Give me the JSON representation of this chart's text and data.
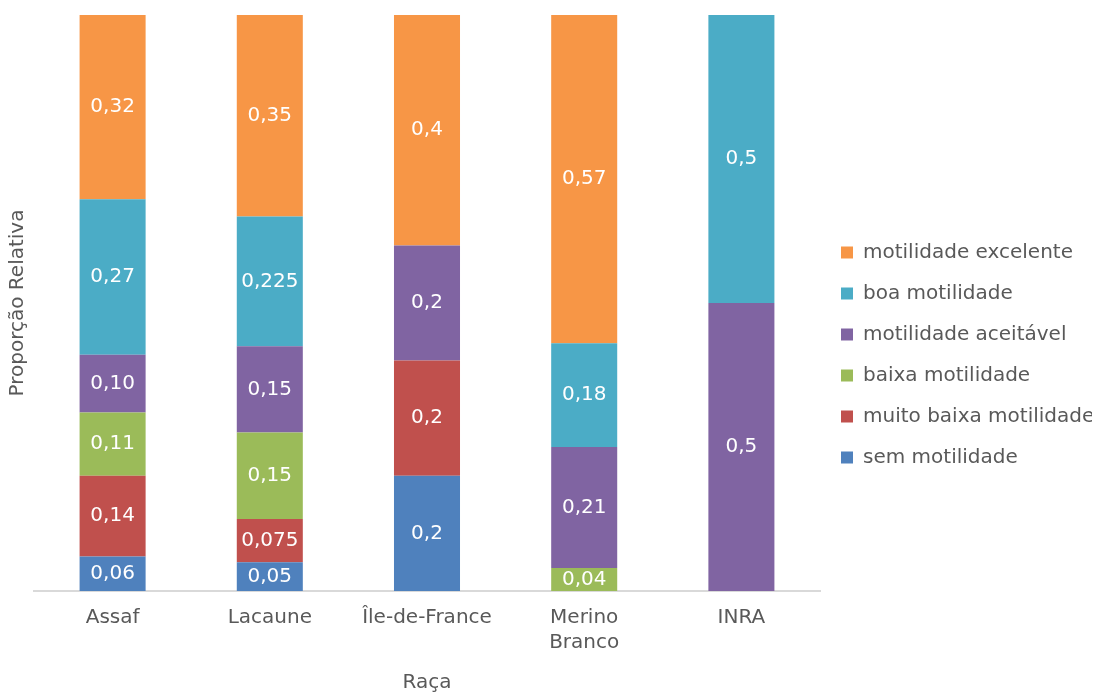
{
  "chart_data": {
    "type": "bar",
    "stacked": true,
    "xlabel": "Raça",
    "ylabel": "Proporção Relativa",
    "categories": [
      "Assaf",
      "Lacaune",
      "Île-de-France",
      "Merino Branco",
      "INRA"
    ],
    "ylim": [
      0,
      1
    ],
    "tick_labels": "x",
    "grid": false,
    "legend": "right",
    "series": [
      {
        "name": "sem motilidade",
        "color": "#4f81bd",
        "values": [
          0.06,
          0.05,
          0.2,
          null,
          null
        ],
        "value_labels": [
          "0,06",
          "0,05",
          "0,2",
          null,
          null
        ]
      },
      {
        "name": "muito baixa motilidade",
        "color": "#c0504d",
        "values": [
          0.14,
          0.075,
          0.2,
          null,
          null
        ],
        "value_labels": [
          "0,14",
          "0,075",
          "0,2",
          null,
          null
        ]
      },
      {
        "name": "baixa motilidade",
        "color": "#9bbb59",
        "values": [
          0.11,
          0.15,
          null,
          0.04,
          null
        ],
        "value_labels": [
          "0,11",
          "0,15",
          null,
          "0,04",
          null
        ]
      },
      {
        "name": "motilidade aceitável",
        "color": "#8064a2",
        "values": [
          0.1,
          0.15,
          0.2,
          0.21,
          0.5
        ],
        "value_labels": [
          "0,10",
          "0,15",
          "0,2",
          "0,21",
          "0,5"
        ]
      },
      {
        "name": "boa motilidade",
        "color": "#4bacc6",
        "values": [
          0.27,
          0.225,
          null,
          0.18,
          0.5
        ],
        "value_labels": [
          "0,27",
          "0,225",
          null,
          "0,18",
          "0,5"
        ]
      },
      {
        "name": "motilidade excelente",
        "color": "#f79646",
        "values": [
          0.32,
          0.35,
          0.4,
          0.57,
          null
        ],
        "value_labels": [
          "0,32",
          "0,35",
          "0,4",
          "0,57",
          null
        ]
      }
    ]
  }
}
